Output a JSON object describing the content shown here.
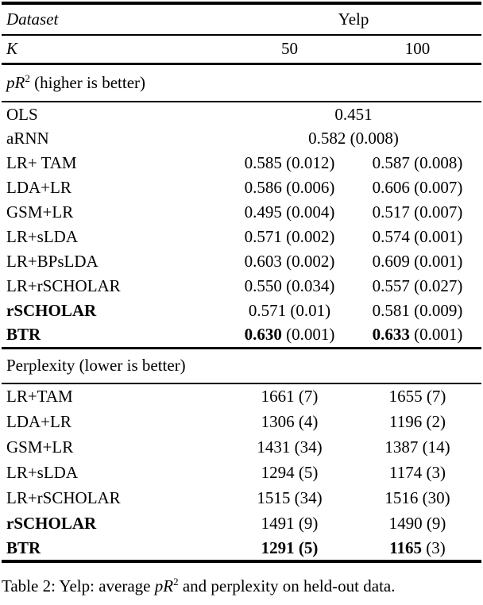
{
  "header": {
    "dataset_label": "Dataset",
    "dataset_value": "Yelp",
    "k_label": "K",
    "k50": "50",
    "k100": "100"
  },
  "pr2": {
    "title_italic": "pR",
    "title_sup": "2",
    "title_rest": " (higher is better)",
    "rows": [
      {
        "label": "OLS",
        "span": "0.451"
      },
      {
        "label": "aRNN",
        "span": "0.582 (0.008)"
      },
      {
        "label": "LR+ TAM",
        "k50v": "0.585",
        "k50se": "(0.012)",
        "k100v": "0.587",
        "k100se": "(0.008)"
      },
      {
        "label": "LDA+LR",
        "k50v": "0.586",
        "k50se": "(0.006)",
        "k100v": "0.606",
        "k100se": "(0.007)"
      },
      {
        "label": "GSM+LR",
        "k50v": "0.495",
        "k50se": "(0.004)",
        "k100v": "0.517",
        "k100se": "(0.007)"
      },
      {
        "label": "LR+sLDA",
        "k50v": "0.571",
        "k50se": "(0.002)",
        "k100v": "0.574",
        "k100se": "(0.001)"
      },
      {
        "label": "LR+BPsLDA",
        "k50v": "0.603",
        "k50se": "(0.002)",
        "k100v": "0.609",
        "k100se": "(0.001)"
      },
      {
        "label": "LR+rSCHOLAR",
        "k50v": "0.550",
        "k50se": "(0.034)",
        "k100v": "0.557",
        "k100se": "(0.027)"
      },
      {
        "label": "rSCHOLAR",
        "k50v": "0.571",
        "k50se": "(0.01)",
        "k100v": "0.581",
        "k100se": "(0.009)"
      },
      {
        "label": "BTR",
        "k50v": "0.630",
        "k50se": "(0.001)",
        "k100v": "0.633",
        "k100se": "(0.001)"
      }
    ]
  },
  "perplexity": {
    "title": "Perplexity (lower is better)",
    "rows": [
      {
        "label": "LR+TAM",
        "k50v": "1661",
        "k50se": "(7)",
        "k100v": "1655",
        "k100se": "(7)"
      },
      {
        "label": "LDA+LR",
        "k50v": "1306",
        "k50se": "(4)",
        "k100v": "1196",
        "k100se": "(2)"
      },
      {
        "label": "GSM+LR",
        "k50v": "1431",
        "k50se": "(34)",
        "k100v": "1387",
        "k100se": "(14)"
      },
      {
        "label": "LR+sLDA",
        "k50v": "1294",
        "k50se": "(5)",
        "k100v": "1174",
        "k100se": "(3)"
      },
      {
        "label": "LR+rSCHOLAR",
        "k50v": "1515",
        "k50se": "(34)",
        "k100v": "1516",
        "k100se": "(30)"
      },
      {
        "label": "rSCHOLAR",
        "k50v": "1491",
        "k50se": "(9)",
        "k100v": "1490",
        "k100se": "(9)"
      },
      {
        "label": "BTR",
        "k50v": "1291",
        "k50se": "(5)",
        "k100v": "1165",
        "k100se": "(3)"
      }
    ]
  },
  "caption": {
    "prefix": "Table 2: Yelp: average ",
    "math": "pR",
    "sup": "2",
    "suffix": " and perplexity on held-out data."
  }
}
